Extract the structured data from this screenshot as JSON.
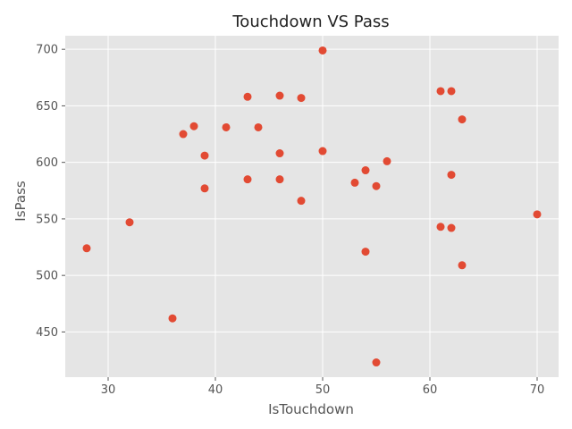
{
  "chart_data": {
    "type": "scatter",
    "title": "Touchdown VS Pass",
    "xlabel": "IsTouchdown",
    "ylabel": "IsPass",
    "xlim": [
      26,
      72
    ],
    "ylim": [
      410,
      712
    ],
    "xticks": [
      30,
      40,
      50,
      60,
      70
    ],
    "yticks": [
      450,
      500,
      550,
      600,
      650,
      700
    ],
    "grid": true,
    "point_color": "#E24A33",
    "background_color": "#E5E5E5",
    "points": [
      {
        "x": 50,
        "y": 699
      },
      {
        "x": 61,
        "y": 663
      },
      {
        "x": 62,
        "y": 663
      },
      {
        "x": 43,
        "y": 658
      },
      {
        "x": 46,
        "y": 659
      },
      {
        "x": 48,
        "y": 657
      },
      {
        "x": 63,
        "y": 638
      },
      {
        "x": 38,
        "y": 632
      },
      {
        "x": 41,
        "y": 631
      },
      {
        "x": 44,
        "y": 631
      },
      {
        "x": 37,
        "y": 625
      },
      {
        "x": 50,
        "y": 610
      },
      {
        "x": 46,
        "y": 608
      },
      {
        "x": 39,
        "y": 606
      },
      {
        "x": 56,
        "y": 601
      },
      {
        "x": 54,
        "y": 593
      },
      {
        "x": 62,
        "y": 589
      },
      {
        "x": 43,
        "y": 585
      },
      {
        "x": 46,
        "y": 585
      },
      {
        "x": 53,
        "y": 582
      },
      {
        "x": 55,
        "y": 579
      },
      {
        "x": 39,
        "y": 577
      },
      {
        "x": 48,
        "y": 566
      },
      {
        "x": 70,
        "y": 554
      },
      {
        "x": 32,
        "y": 547
      },
      {
        "x": 61,
        "y": 543
      },
      {
        "x": 62,
        "y": 542
      },
      {
        "x": 28,
        "y": 524
      },
      {
        "x": 54,
        "y": 521
      },
      {
        "x": 63,
        "y": 509
      },
      {
        "x": 36,
        "y": 462
      },
      {
        "x": 55,
        "y": 423
      }
    ]
  }
}
